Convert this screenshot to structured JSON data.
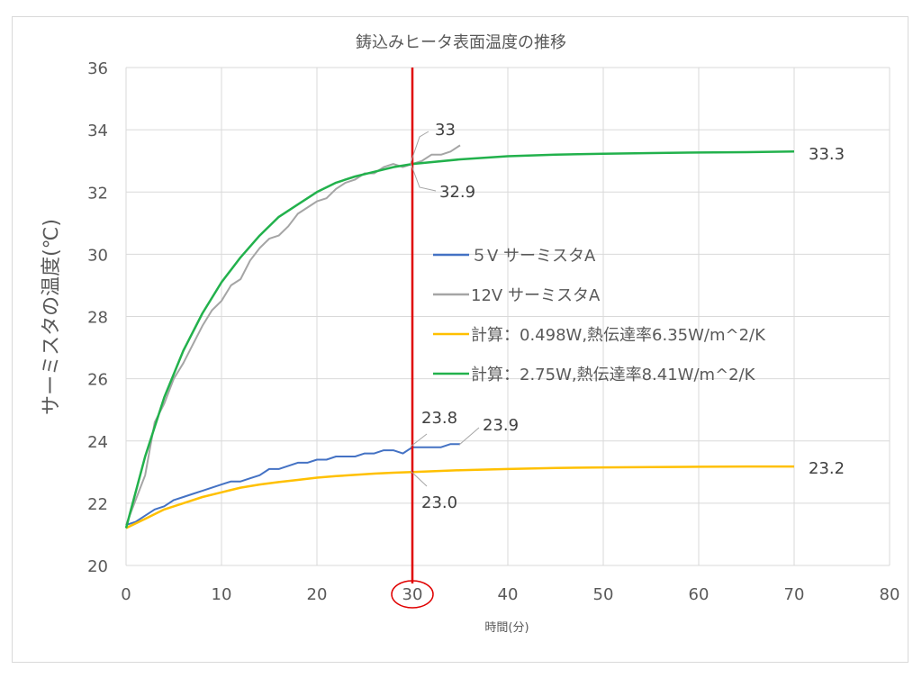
{
  "chart_data": {
    "type": "line",
    "title": "鋳込みヒータ表面温度の推移",
    "xlabel": "時間(分)",
    "ylabel": "サーミスタの温度(℃)",
    "xlim": [
      0,
      80
    ],
    "ylim": [
      20,
      36
    ],
    "xticks": [
      0,
      10,
      20,
      30,
      40,
      50,
      60,
      70,
      80
    ],
    "yticks": [
      20,
      22,
      24,
      26,
      28,
      30,
      32,
      34,
      36
    ],
    "grid": true,
    "legend_position": "center-right",
    "series": [
      {
        "name": "５V サーミスタA",
        "color": "#4472c4",
        "x": [
          0,
          1,
          2,
          3,
          4,
          5,
          6,
          7,
          8,
          9,
          10,
          11,
          12,
          13,
          14,
          15,
          16,
          17,
          18,
          19,
          20,
          21,
          22,
          23,
          24,
          25,
          26,
          27,
          28,
          29,
          30,
          31,
          32,
          33,
          34,
          35
        ],
        "y": [
          21.3,
          21.4,
          21.6,
          21.8,
          21.9,
          22.1,
          22.2,
          22.3,
          22.4,
          22.5,
          22.6,
          22.7,
          22.7,
          22.8,
          22.9,
          23.1,
          23.1,
          23.2,
          23.3,
          23.3,
          23.4,
          23.4,
          23.5,
          23.5,
          23.5,
          23.6,
          23.6,
          23.7,
          23.7,
          23.6,
          23.8,
          23.8,
          23.8,
          23.8,
          23.9,
          23.9
        ]
      },
      {
        "name": "12V サーミスタA",
        "color": "#a5a5a5",
        "x": [
          0,
          1,
          2,
          3,
          4,
          5,
          6,
          7,
          8,
          9,
          10,
          11,
          12,
          13,
          14,
          15,
          16,
          17,
          18,
          19,
          20,
          21,
          22,
          23,
          24,
          25,
          26,
          27,
          28,
          29,
          30,
          31,
          32,
          33,
          34,
          35
        ],
        "y": [
          21.3,
          22.1,
          22.9,
          24.6,
          25.2,
          26.0,
          26.5,
          27.1,
          27.7,
          28.2,
          28.5,
          29.0,
          29.2,
          29.8,
          30.2,
          30.5,
          30.6,
          30.9,
          31.3,
          31.5,
          31.7,
          31.8,
          32.1,
          32.3,
          32.4,
          32.6,
          32.6,
          32.8,
          32.9,
          32.8,
          32.9,
          33.0,
          33.2,
          33.2,
          33.3,
          33.5
        ]
      },
      {
        "name": "計算：0.498W,熱伝達率6.35W/m^2/K",
        "color": "#ffc000",
        "x": [
          0,
          2,
          4,
          6,
          8,
          10,
          12,
          14,
          16,
          18,
          20,
          22,
          24,
          26,
          28,
          30,
          35,
          40,
          45,
          50,
          55,
          60,
          65,
          70
        ],
        "y": [
          21.2,
          21.5,
          21.8,
          22.0,
          22.2,
          22.35,
          22.5,
          22.6,
          22.68,
          22.75,
          22.82,
          22.87,
          22.91,
          22.95,
          22.98,
          23.0,
          23.06,
          23.1,
          23.13,
          23.15,
          23.16,
          23.17,
          23.18,
          23.18
        ]
      },
      {
        "name": "計算：2.75W,熱伝達率8.41W/m^2/K",
        "color": "#22b14c",
        "x": [
          0,
          2,
          4,
          6,
          8,
          10,
          12,
          14,
          16,
          18,
          20,
          22,
          24,
          26,
          28,
          30,
          35,
          40,
          45,
          50,
          55,
          60,
          65,
          70
        ],
        "y": [
          21.2,
          23.5,
          25.4,
          26.9,
          28.1,
          29.1,
          29.9,
          30.6,
          31.2,
          31.6,
          32.0,
          32.3,
          32.5,
          32.65,
          32.8,
          32.9,
          33.05,
          33.15,
          33.2,
          33.23,
          33.25,
          33.27,
          33.28,
          33.3
        ]
      }
    ],
    "vertical_marker": {
      "x": 30,
      "color": "#e00000",
      "circled_tick": "30"
    },
    "annotations": [
      {
        "text": "33",
        "series": 1,
        "x": 30,
        "y": 32.9
      },
      {
        "text": "32.9",
        "series": 3,
        "x": 30,
        "y": 32.9
      },
      {
        "text": "23.8",
        "series": 0,
        "x": 30,
        "y": 23.8
      },
      {
        "text": "23.9",
        "series": 0,
        "x": 35,
        "y": 23.9
      },
      {
        "text": "23.0",
        "series": 2,
        "x": 30,
        "y": 23.0
      },
      {
        "text": "33.3",
        "series": 3,
        "x": 70,
        "y": 33.3
      },
      {
        "text": "23.2",
        "series": 2,
        "x": 70,
        "y": 23.18
      }
    ]
  }
}
